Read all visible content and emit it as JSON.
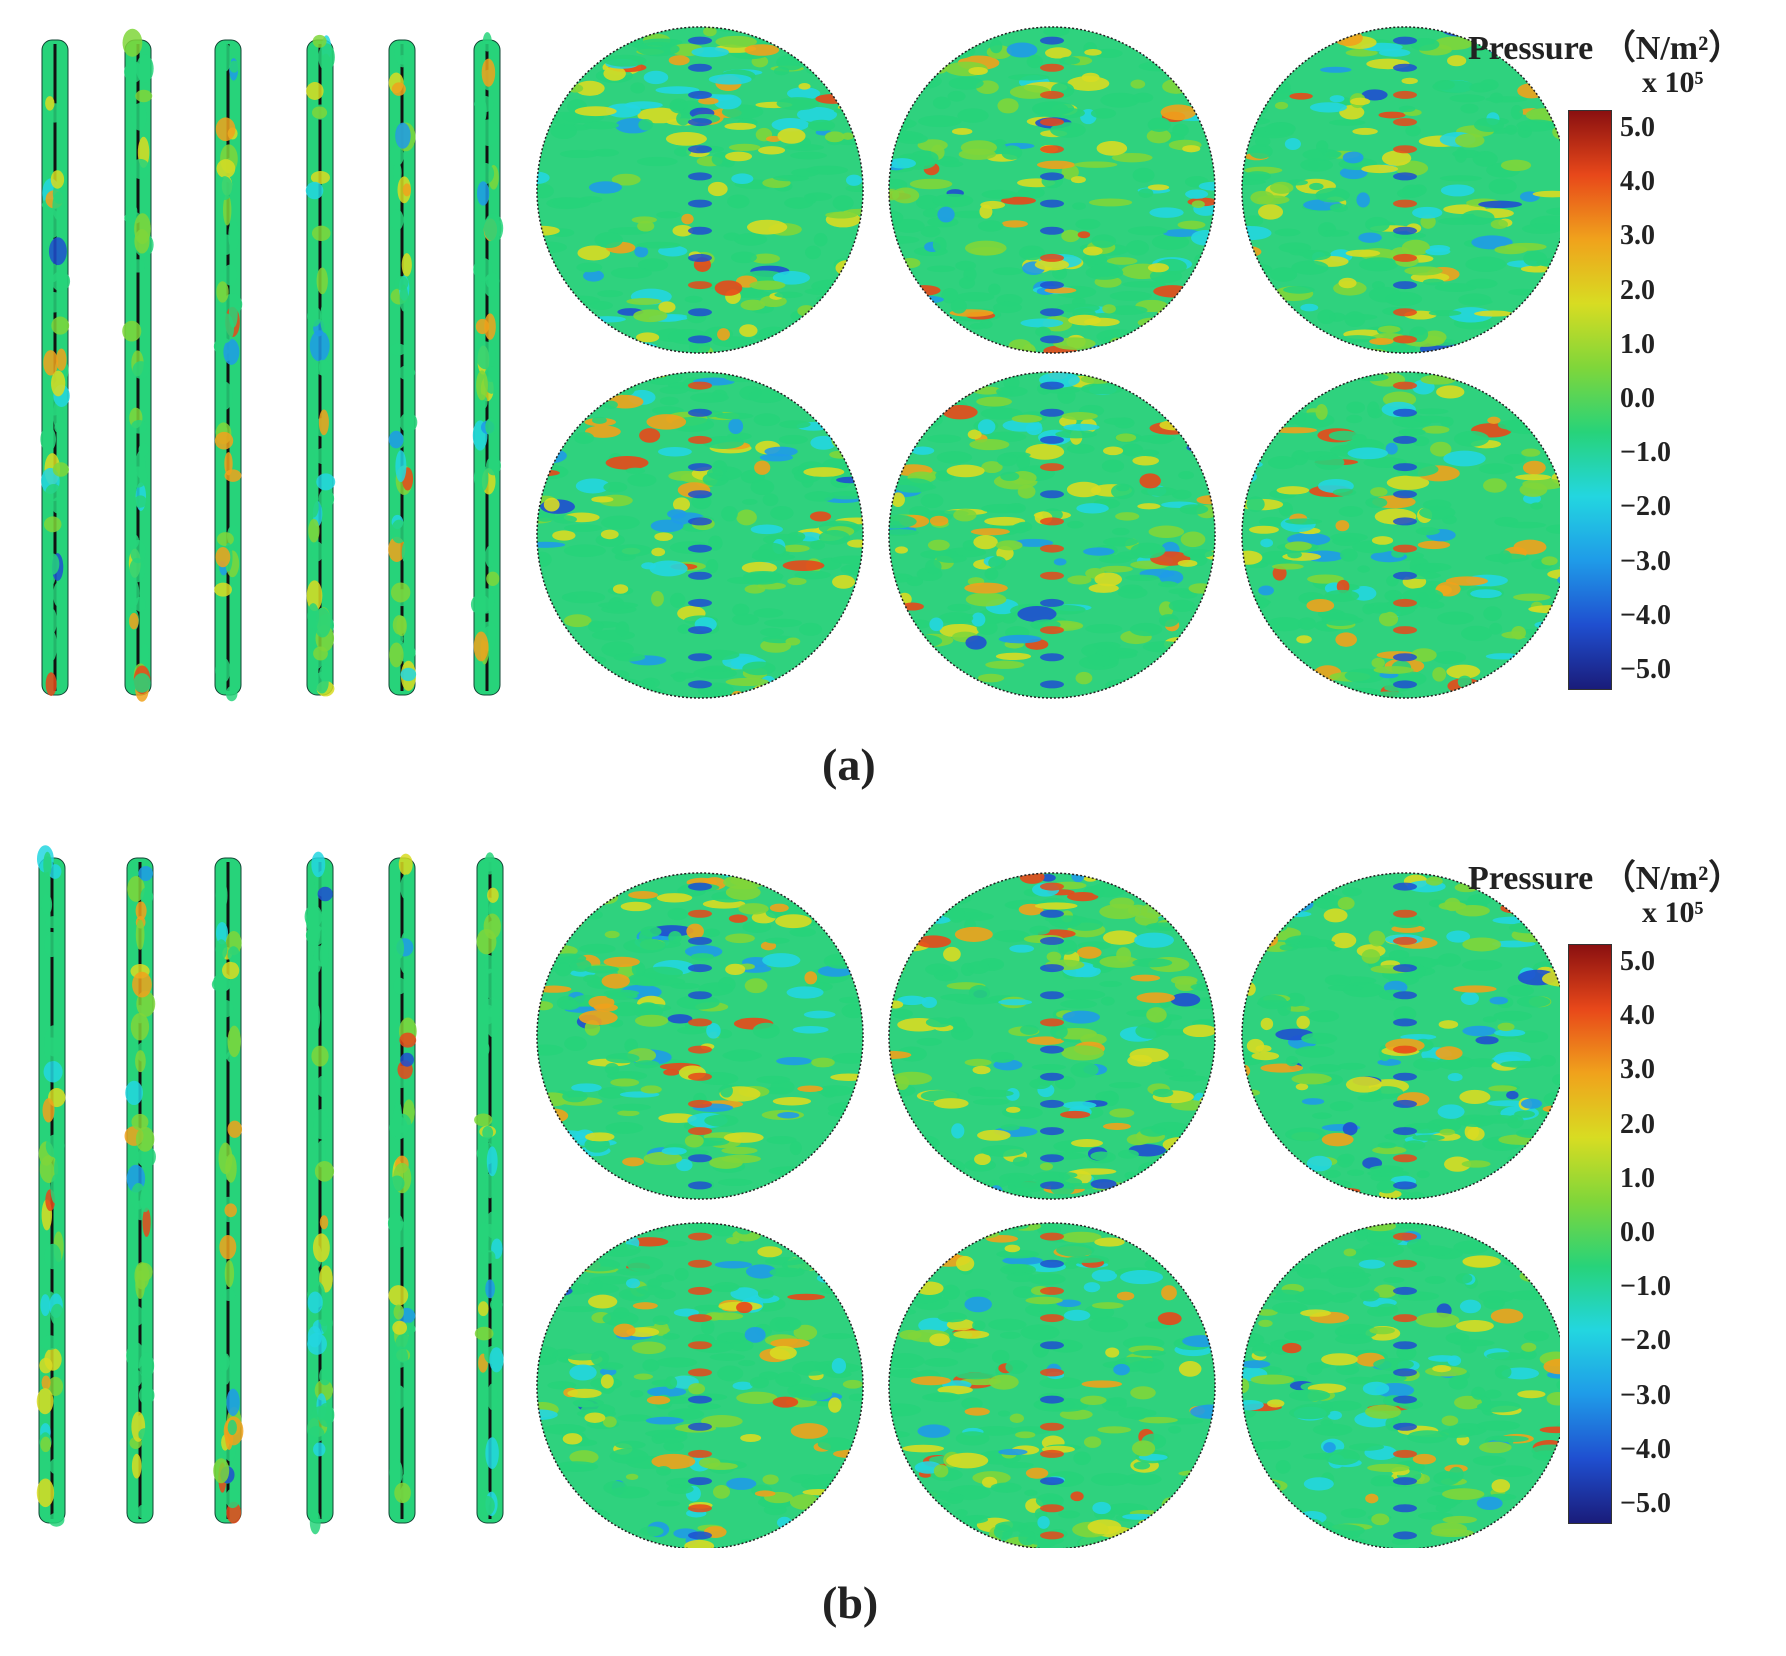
{
  "panels": [
    {
      "id": "a",
      "label": "(a)",
      "colorbar": {
        "title": "Pressure （N/m²）",
        "exponent": "x 10⁵",
        "ticks": [
          "5.0",
          "4.0",
          "3.0",
          "2.0",
          "1.0",
          "0.0",
          "−1.0",
          "−2.0",
          "−3.0",
          "−4.0",
          "−5.0"
        ],
        "range": [
          -5.0,
          5.0
        ]
      }
    },
    {
      "id": "b",
      "label": "(b)",
      "colorbar": {
        "title": "Pressure （N/m²）",
        "exponent": "x 10⁵",
        "ticks": [
          "5.0",
          "4.0",
          "3.0",
          "2.0",
          "1.0",
          "0.0",
          "−1.0",
          "−2.0",
          "−3.0",
          "−4.0",
          "−5.0"
        ],
        "range": [
          -5.0,
          5.0
        ]
      }
    }
  ],
  "colormap": [
    "#1a1c7a",
    "#1f4fd0",
    "#1f9be8",
    "#23d6e0",
    "#27d37a",
    "#7fd63a",
    "#d8dc22",
    "#f0a21c",
    "#e8481a",
    "#8a1010"
  ]
}
